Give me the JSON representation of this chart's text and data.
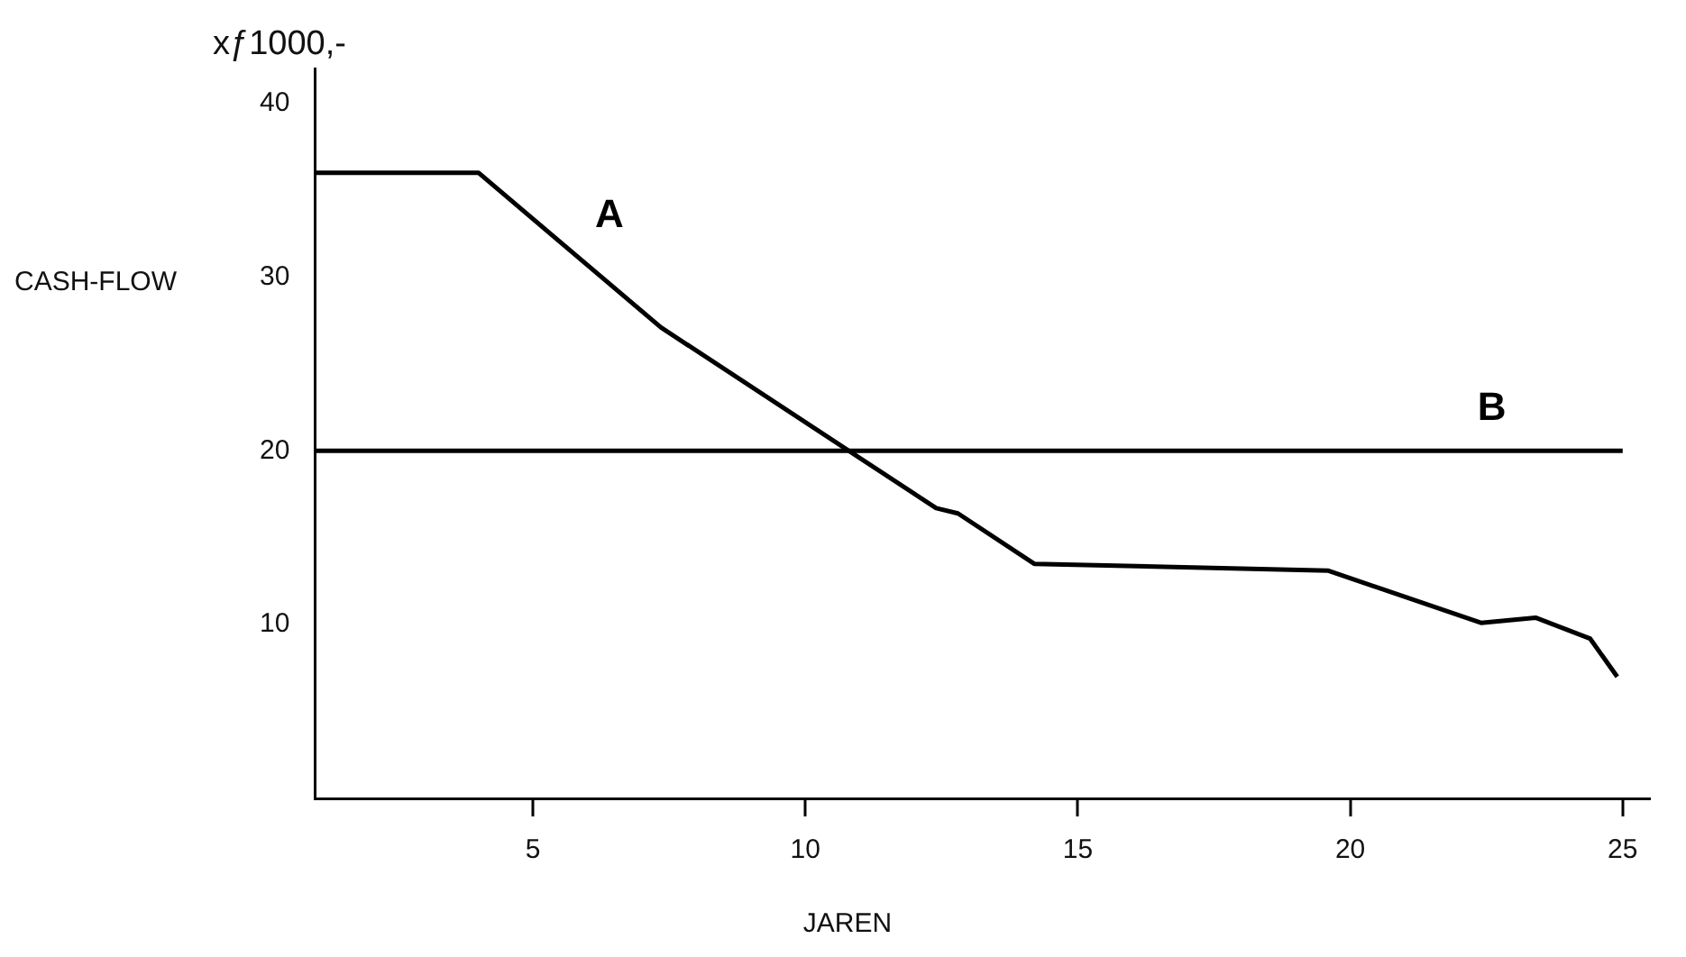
{
  "chart_data": {
    "type": "line",
    "xlabel": "JAREN",
    "ylabel": "CASH-FLOW",
    "annotations": [
      "xƒ1000,-"
    ],
    "xlim": [
      1,
      25.5
    ],
    "xticks": [
      5,
      10,
      15,
      20,
      25
    ],
    "ylim": [
      0,
      42
    ],
    "yticks": [
      10,
      20,
      30,
      40
    ],
    "grid": false,
    "legend": false,
    "marker": "none",
    "line_style": "solid",
    "series": [
      {
        "name": "A",
        "color": "#000000",
        "x": [
          1,
          4,
          7.35,
          12.4,
          12.8,
          14.2,
          19.6,
          22.4,
          23.4,
          24.4,
          24.9
        ],
        "values": [
          36,
          36,
          27.1,
          16.7,
          16.4,
          13.5,
          13.1,
          10.1,
          10.4,
          9.2,
          7
        ]
      },
      {
        "name": "B",
        "color": "#000000",
        "x": [
          1,
          25
        ],
        "values": [
          20,
          20
        ]
      }
    ]
  }
}
